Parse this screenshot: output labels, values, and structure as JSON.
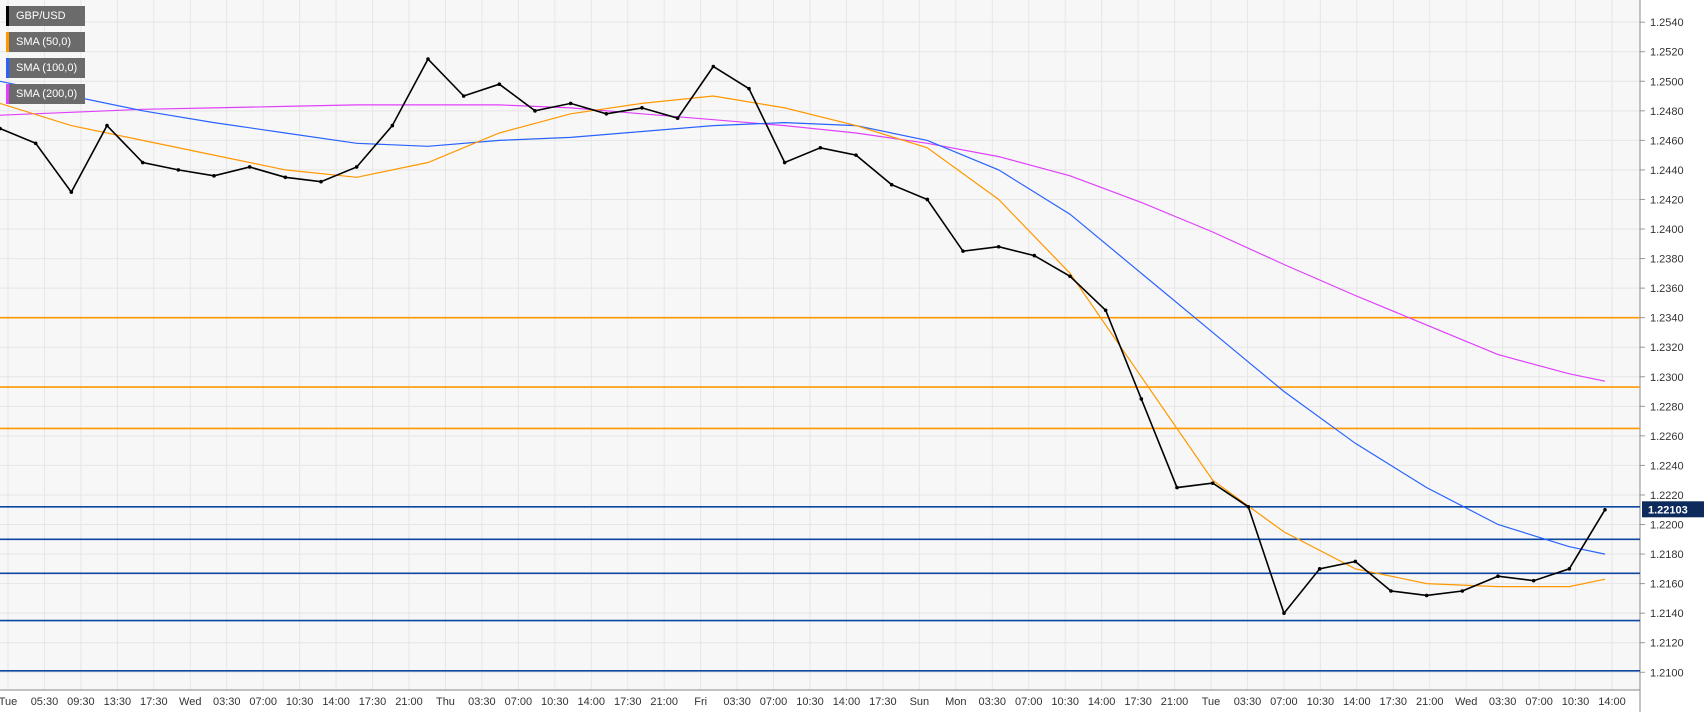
{
  "legend": [
    {
      "label": "GBP/USD",
      "color": "#000000"
    },
    {
      "label": "SMA (50,0)",
      "color": "#ff9800"
    },
    {
      "label": "SMA (100,0)",
      "color": "#2962ff"
    },
    {
      "label": "SMA (200,0)",
      "color": "#e040fb"
    }
  ],
  "chart_data": {
    "type": "line",
    "symbol": "GBP/USD",
    "ylim": [
      1.2088,
      1.2555
    ],
    "y_ticks": [
      "1.2100",
      "1.2120",
      "1.2140",
      "1.2160",
      "1.2180",
      "1.2200",
      "1.2220",
      "1.2240",
      "1.2260",
      "1.2280",
      "1.2300",
      "1.2320",
      "1.2340",
      "1.2360",
      "1.2380",
      "1.2400",
      "1.2420",
      "1.2440",
      "1.2460",
      "1.2480",
      "1.2500",
      "1.2520",
      "1.2540"
    ],
    "x_ticks": [
      "Tue",
      "05:30",
      "09:30",
      "13:30",
      "17:30",
      "Wed",
      "03:30",
      "07:00",
      "10:30",
      "14:00",
      "17:30",
      "21:00",
      "Thu",
      "03:30",
      "07:00",
      "10:30",
      "14:00",
      "17:30",
      "21:00",
      "Fri",
      "03:30",
      "07:00",
      "10:30",
      "14:00",
      "17:30",
      "Sun",
      "Mon",
      "03:30",
      "07:00",
      "10:30",
      "14:00",
      "17:30",
      "21:00",
      "Tue",
      "03:30",
      "07:00",
      "10:30",
      "14:00",
      "17:30",
      "21:00",
      "Wed",
      "03:30",
      "07:00",
      "10:30",
      "14:00"
    ],
    "current_price": "1.22103",
    "horizontal_levels": [
      {
        "value": 1.234,
        "color": "#ff9800"
      },
      {
        "value": 1.2293,
        "color": "#ff9800"
      },
      {
        "value": 1.2265,
        "color": "#ff9800"
      },
      {
        "value": 1.2212,
        "color": "#0d47a1"
      },
      {
        "value": 1.219,
        "color": "#0d47a1"
      },
      {
        "value": 1.2167,
        "color": "#0d47a1"
      },
      {
        "value": 1.2135,
        "color": "#0d47a1"
      },
      {
        "value": 1.2101,
        "color": "#0d47a1"
      }
    ],
    "series": [
      {
        "name": "GBP/USD",
        "x": [
          0,
          0.5,
          1,
          1.5,
          2,
          2.5,
          3,
          3.5,
          4,
          4.5,
          5,
          5.5,
          6,
          6.5,
          7,
          7.5,
          8,
          8.5,
          9,
          9.5,
          10,
          10.5,
          11,
          11.5,
          12,
          12.5,
          13,
          13.5,
          14,
          14.5,
          15,
          15.5,
          16,
          16.5,
          17,
          17.5,
          18,
          18.5,
          19,
          19.5,
          20,
          20.5,
          21,
          21.5,
          22,
          22.5
        ],
        "values": [
          1.2468,
          1.2458,
          1.2425,
          1.247,
          1.2445,
          1.244,
          1.2436,
          1.2442,
          1.2435,
          1.2432,
          1.2442,
          1.247,
          1.2515,
          1.249,
          1.2498,
          1.248,
          1.2485,
          1.2478,
          1.2482,
          1.2475,
          1.251,
          1.2495,
          1.2445,
          1.2455,
          1.245,
          1.243,
          1.242,
          1.2385,
          1.2388,
          1.2382,
          1.2368,
          1.2345,
          1.2285,
          1.2225,
          1.2228,
          1.2212,
          1.214,
          1.217,
          1.2175,
          1.2155,
          1.2152,
          1.2155,
          1.2165,
          1.2162,
          1.217,
          1.221
        ]
      },
      {
        "name": "SMA (50,0)",
        "x": [
          0,
          1,
          2,
          3,
          4,
          5,
          6,
          7,
          8,
          9,
          10,
          11,
          12,
          13,
          14,
          15,
          16,
          17,
          18,
          19,
          20,
          21,
          22,
          22.5
        ],
        "values": [
          1.2485,
          1.247,
          1.246,
          1.245,
          1.244,
          1.2435,
          1.2445,
          1.2465,
          1.2478,
          1.2485,
          1.249,
          1.2482,
          1.247,
          1.2455,
          1.242,
          1.237,
          1.23,
          1.223,
          1.2195,
          1.217,
          1.216,
          1.2158,
          1.2158,
          1.2163
        ]
      },
      {
        "name": "SMA (100,0)",
        "x": [
          0,
          1,
          2,
          3,
          4,
          5,
          6,
          7,
          8,
          9,
          10,
          11,
          12,
          13,
          14,
          15,
          16,
          17,
          18,
          19,
          20,
          21,
          22,
          22.5
        ],
        "values": [
          1.25,
          1.249,
          1.248,
          1.2472,
          1.2465,
          1.2458,
          1.2456,
          1.246,
          1.2462,
          1.2466,
          1.247,
          1.2472,
          1.247,
          1.246,
          1.244,
          1.241,
          1.237,
          1.233,
          1.229,
          1.2255,
          1.2225,
          1.22,
          1.2185,
          1.218
        ]
      },
      {
        "name": "SMA (200,0)",
        "x": [
          0,
          1,
          2,
          3,
          4,
          5,
          6,
          7,
          8,
          9,
          10,
          11,
          12,
          13,
          14,
          15,
          16,
          17,
          18,
          19,
          20,
          21,
          22,
          22.5
        ],
        "values": [
          1.2477,
          1.2479,
          1.2481,
          1.2482,
          1.2483,
          1.2484,
          1.2484,
          1.2484,
          1.2482,
          1.2478,
          1.2474,
          1.247,
          1.2465,
          1.2458,
          1.2449,
          1.2436,
          1.2418,
          1.2398,
          1.2376,
          1.2355,
          1.2335,
          1.2315,
          1.2302,
          1.2297
        ]
      }
    ]
  }
}
